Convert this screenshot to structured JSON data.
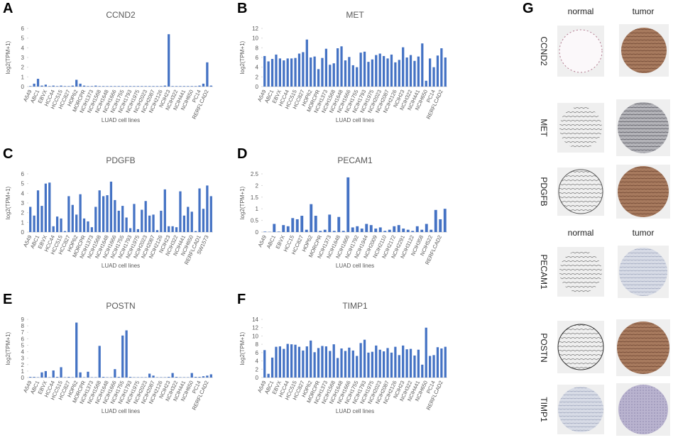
{
  "chart_data": [
    {
      "type": "bar",
      "panel": "A",
      "title": "CCND2",
      "ylabel": "log2(TPM+1)",
      "xlabel": "LUAD cell lines",
      "color": "#4472c4",
      "categories": [
        "A549",
        null,
        "ABC1",
        null,
        "EBVX",
        null,
        "HCC44",
        null,
        "HCC515",
        null,
        "HCC827",
        null,
        "HOP62",
        null,
        "MORCPR",
        null,
        "NCIH1373",
        null,
        "NCIH1568",
        null,
        "NCIH1648",
        null,
        "NCIH1666",
        null,
        "NCIH1755",
        null,
        "NCIH1793",
        null,
        "NCIH1975",
        null,
        "NCIH2023",
        null,
        "NCIH2087",
        null,
        "NCIH2126",
        null,
        "NCIH23",
        null,
        "NCIH322",
        null,
        "NCIH441",
        null,
        "NCIH650",
        null,
        "PC14",
        null,
        "RERFLCAD2",
        null
      ],
      "values": [
        0.05,
        0.3,
        0.8,
        0.1,
        0.2,
        0.05,
        0.1,
        0.05,
        0.1,
        0.05,
        0.05,
        0.1,
        0.7,
        0.3,
        0.1,
        0.05,
        0.05,
        0.1,
        0.05,
        0.05,
        0.05,
        0.05,
        0.05,
        0.05,
        0.05,
        0.05,
        0.05,
        0.05,
        0.05,
        0.05,
        0.05,
        0.05,
        0.05,
        0.05,
        0.05,
        0.1,
        5.4,
        0.05,
        0.05,
        0.05,
        0.05,
        0.05,
        0.05,
        0.05,
        0.1,
        0.3,
        2.5,
        0.1
      ],
      "ylim": [
        0,
        6
      ],
      "yticks": [
        0,
        1,
        2,
        3,
        4,
        5,
        6
      ]
    },
    {
      "type": "bar",
      "panel": "B",
      "title": "MET",
      "ylabel": "log2(TPM+1)",
      "xlabel": "LUAD cell lines",
      "color": "#4472c4",
      "categories": [
        "A549",
        null,
        "ABC1",
        null,
        "EBVX",
        null,
        "HCC44",
        null,
        "HCC515",
        null,
        "HCC827",
        null,
        "HOP62",
        null,
        "MORCPR",
        null,
        "NCIH1373",
        null,
        "NCIH1568",
        null,
        "NCIH1648",
        null,
        "NCIH1666",
        null,
        "NCIH1755",
        null,
        "NCIH1793",
        null,
        "NCIH1975",
        null,
        "NCIH2023",
        null,
        "NCIH2087",
        null,
        "NCIH2126",
        null,
        "NCIH23",
        null,
        "NCIH322",
        null,
        "NCIH441",
        null,
        "NCIH650",
        null,
        "PC14",
        null,
        "RERFLCAD2",
        null
      ],
      "values": [
        6.3,
        5.2,
        5.7,
        6.6,
        5.8,
        5.4,
        5.8,
        5.8,
        5.9,
        6.8,
        7.1,
        9.7,
        6.0,
        6.2,
        3.6,
        5.9,
        7.8,
        4.5,
        4.8,
        7.9,
        8.3,
        5.4,
        6.1,
        4.4,
        4.0,
        7.0,
        7.2,
        5.1,
        5.6,
        6.5,
        6.8,
        6.3,
        5.8,
        6.6,
        5.0,
        5.5,
        8.1,
        6.0,
        6.5,
        5.3,
        6.2,
        8.9,
        1.2,
        5.8,
        4.0,
        6.4,
        7.9,
        6.0
      ],
      "ylim": [
        0,
        12
      ],
      "yticks": [
        0,
        2,
        4,
        6,
        8,
        10,
        12
      ]
    },
    {
      "type": "bar",
      "panel": "C",
      "title": "PDGFB",
      "ylabel": "log2(TPM+1)",
      "xlabel": "LUAD cell lines",
      "color": "#4472c4",
      "categories": [
        "A549",
        null,
        "ABC1",
        null,
        "EBVX",
        null,
        "HCC44",
        null,
        "HCC515",
        null,
        "HCC827",
        null,
        "HOP62",
        null,
        "MORCPR",
        null,
        "NCIH1373",
        null,
        "NCIH1568",
        null,
        "NCIH1648",
        null,
        "NCIH1666",
        null,
        "NCIH1755",
        null,
        "NCIH1793",
        null,
        "NCIH1975",
        null,
        "NCIH2023",
        null,
        "NCIH2087",
        null,
        "NCIH2126",
        null,
        "NCIH23",
        null,
        "NCIH322",
        null,
        "NCIH441",
        null,
        "NCIH650",
        null,
        "RERFLCAD1",
        null,
        "SW1573",
        null
      ],
      "values": [
        2.6,
        1.7,
        4.3,
        2.7,
        5.0,
        5.1,
        0.6,
        1.6,
        1.4,
        0.1,
        3.7,
        2.8,
        1.8,
        3.9,
        1.4,
        1.1,
        0.5,
        2.6,
        4.3,
        3.7,
        3.8,
        5.2,
        3.3,
        2.2,
        2.7,
        1.5,
        0.4,
        2.9,
        0.3,
        2.3,
        3.2,
        1.7,
        1.8,
        0.2,
        2.2,
        4.4,
        0.6,
        0.6,
        0.5,
        4.2,
        1.7,
        2.6,
        2.1,
        0.1,
        4.5,
        2.4,
        4.8,
        3.7
      ],
      "ylim": [
        0,
        6
      ],
      "yticks": [
        0,
        1,
        2,
        3,
        4,
        5,
        6
      ]
    },
    {
      "type": "bar",
      "panel": "D",
      "title": "PECAM1",
      "ylabel": "log2(TPM+1)",
      "xlabel": "LUAD cell lines",
      "color": "#4472c4",
      "categories": [
        "A549",
        null,
        "ABC1",
        null,
        "EBVX",
        null,
        "HCC15",
        null,
        "HCC827",
        null,
        "HOP62",
        null,
        "MORCPR",
        null,
        "NCIH1373",
        null,
        "NCIH1648",
        null,
        "NCIH1666",
        null,
        "NCIH1792",
        null,
        "NCIH1944",
        null,
        "NCIH2009",
        null,
        "NCIH2110",
        null,
        "NCIH2172",
        null,
        "NCIH2291",
        null,
        "NCIH3122",
        null,
        "NCIH358",
        null,
        "NCIH522",
        null,
        "RERFLCAD2",
        null
      ],
      "values": [
        0.02,
        0.01,
        0.35,
        0.02,
        0.3,
        0.25,
        0.6,
        0.55,
        0.7,
        0.1,
        1.2,
        0.7,
        0.05,
        0.1,
        0.75,
        0.05,
        0.65,
        0.05,
        2.35,
        0.2,
        0.25,
        0.15,
        0.35,
        0.3,
        0.15,
        0.2,
        0.05,
        0.1,
        0.25,
        0.3,
        0.15,
        0.1,
        0.05,
        0.25,
        0.1,
        0.35,
        0.1,
        0.95,
        0.55,
        1.0
      ],
      "ylim": [
        0,
        2.5
      ],
      "yticks": [
        0,
        0.5,
        1,
        1.5,
        2,
        2.5
      ]
    },
    {
      "type": "bar",
      "panel": "E",
      "title": "POSTN",
      "ylabel": "log2(TPM+1)",
      "xlabel": "LUAD cell lines",
      "color": "#4472c4",
      "categories": [
        "A549",
        null,
        "ABC1",
        null,
        "EBVX",
        null,
        "HCC44",
        null,
        "HCC515",
        null,
        "HCC827",
        null,
        "HOP62",
        null,
        "MORCPR",
        null,
        "NCIH1373",
        null,
        "NCIH1568",
        null,
        "NCIH1648",
        null,
        "NCIH1666",
        null,
        "NCIH1755",
        null,
        "NCIH1793",
        null,
        "NCIH1975",
        null,
        "NCIH2023",
        null,
        "NCIH2087",
        null,
        "NCIH2126",
        null,
        "NCIH23",
        null,
        "NCIH322",
        null,
        "NCIH441",
        null,
        "NCIH650",
        null,
        "PC14",
        null,
        "RERFLCAD2",
        null
      ],
      "values": [
        0.1,
        0.1,
        0.05,
        0.8,
        1.0,
        0.05,
        1.1,
        0.1,
        1.6,
        0.05,
        0.1,
        0.05,
        8.5,
        0.8,
        0.05,
        0.9,
        0.05,
        0.05,
        4.9,
        0.1,
        0.05,
        0.05,
        1.3,
        0.1,
        6.5,
        7.3,
        0.1,
        0.05,
        0.05,
        0.05,
        0.05,
        0.6,
        0.3,
        0.05,
        0.05,
        0.05,
        0.1,
        0.7,
        0.1,
        0.05,
        0.05,
        0.05,
        0.7,
        0.1,
        0.1,
        0.2,
        0.3,
        0.5
      ],
      "ylim": [
        0,
        9
      ],
      "yticks": [
        0,
        1,
        2,
        3,
        4,
        5,
        6,
        7,
        8,
        9
      ]
    },
    {
      "type": "bar",
      "panel": "F",
      "title": "TIMP1",
      "ylabel": "log2(TPM+1)",
      "xlabel": "LUAD cell lines",
      "color": "#4472c4",
      "categories": [
        "A549",
        null,
        "ABC1",
        null,
        "EBVX",
        null,
        "HCC44",
        null,
        "HCC515",
        null,
        "HCC827",
        null,
        "HOP62",
        null,
        "MORCPR",
        null,
        "NCIH1373",
        null,
        "NCIH1568",
        null,
        "NCIH1648",
        null,
        "NCIH1666",
        null,
        "NCIH1755",
        null,
        "NCIH1793",
        null,
        "NCIH1975",
        null,
        "NCIH2023",
        null,
        "NCIH2087",
        null,
        "NCIH2126",
        null,
        "NCIH23",
        null,
        "NCIH322",
        null,
        "NCIH441",
        null,
        "NCIH650",
        null,
        "PC14",
        null,
        "RERFLCAD2",
        null
      ],
      "values": [
        6.6,
        0.9,
        4.8,
        7.4,
        7.5,
        6.9,
        8.1,
        8.0,
        7.9,
        7.4,
        6.5,
        7.5,
        8.9,
        6.1,
        7.1,
        7.6,
        7.5,
        6.4,
        8.0,
        4.7,
        7.0,
        6.4,
        7.2,
        6.5,
        5.2,
        8.3,
        9.1,
        6.0,
        6.2,
        7.7,
        6.7,
        6.3,
        7.1,
        6.0,
        7.4,
        5.4,
        7.7,
        6.8,
        6.9,
        5.3,
        6.7,
        3.1,
        12.0,
        5.2,
        5.4,
        7.3,
        7.0,
        7.4
      ],
      "ylim": [
        0,
        14
      ],
      "yticks": [
        0,
        2,
        4,
        6,
        8,
        10,
        12,
        14
      ]
    }
  ],
  "panel_g": {
    "label": "G",
    "header_top": [
      "normal",
      "tumor"
    ],
    "header_mid": [
      "normal",
      "tumor"
    ],
    "genes": [
      "CCND2",
      "MET",
      "PDGFB",
      "PECAM1",
      "POSTN",
      "TIMP1"
    ]
  }
}
